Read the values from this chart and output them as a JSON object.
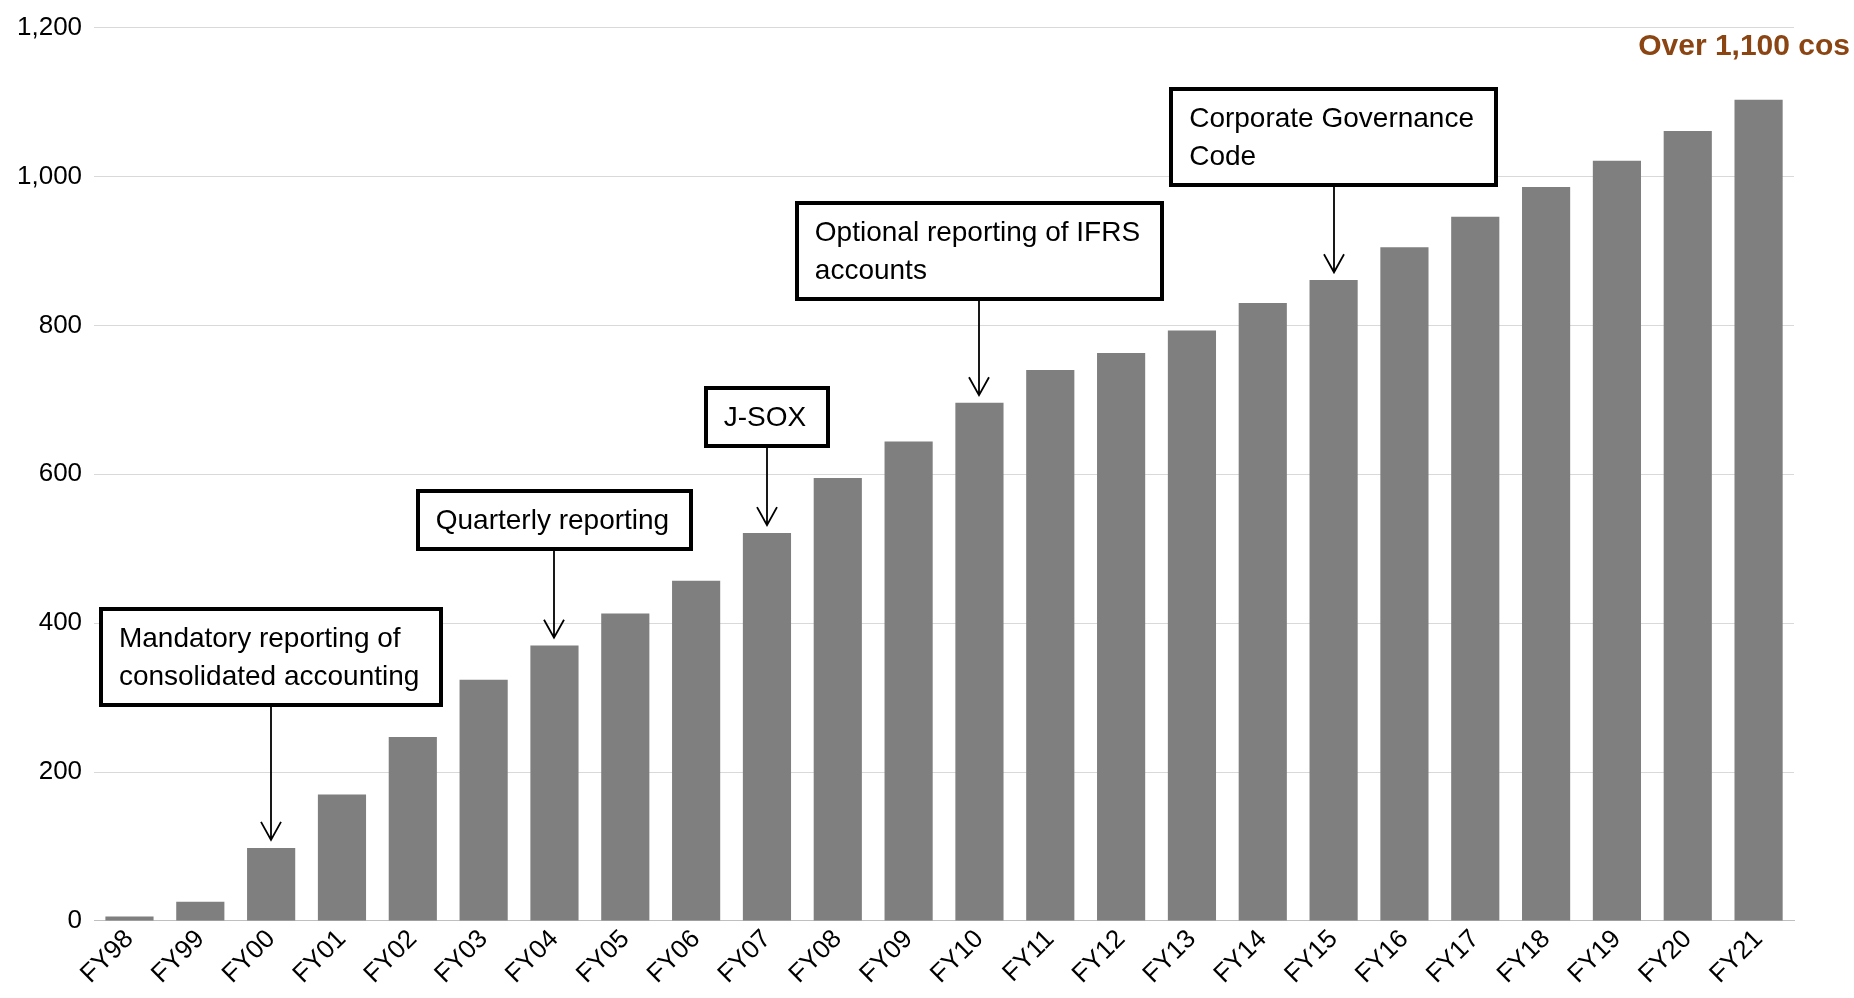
{
  "chart_data": {
    "type": "bar",
    "categories": [
      "FY98",
      "FY99",
      "FY00",
      "FY01",
      "FY02",
      "FY03",
      "FY04",
      "FY05",
      "FY06",
      "FY07",
      "FY08",
      "FY09",
      "FY10",
      "FY11",
      "FY12",
      "FY13",
      "FY14",
      "FY15",
      "FY16",
      "FY17",
      "FY18",
      "FY19",
      "FY20",
      "FY21"
    ],
    "values": [
      6,
      26,
      98,
      170,
      247,
      324,
      370,
      413,
      457,
      521,
      595,
      644,
      696,
      740,
      763,
      793,
      830,
      861,
      905,
      946,
      986,
      1021,
      1061,
      1103
    ],
    "color": "#7f7f7f",
    "ylim": [
      0,
      1200
    ],
    "yticks": [
      0,
      200,
      400,
      600,
      800,
      {
        "value": 1000,
        "label": "1,000"
      },
      {
        "value": 1200,
        "label": "1,200"
      }
    ],
    "grid": "y",
    "legend": false,
    "annotations": [
      {
        "text": "Mandatory reporting of consolidated accounting",
        "x": "FY00",
        "y": 98
      },
      {
        "text": "Quarterly reporting",
        "x": "FY04",
        "y": 370
      },
      {
        "text": "J-SOX",
        "x": "FY07",
        "y": 521
      },
      {
        "text": "Optional reporting of IFRS accounts",
        "x": "FY10",
        "y": 696
      },
      {
        "text": "Corporate Governance Code",
        "x": "FY15",
        "y": 861
      },
      "Over 1,100 cos"
    ]
  }
}
